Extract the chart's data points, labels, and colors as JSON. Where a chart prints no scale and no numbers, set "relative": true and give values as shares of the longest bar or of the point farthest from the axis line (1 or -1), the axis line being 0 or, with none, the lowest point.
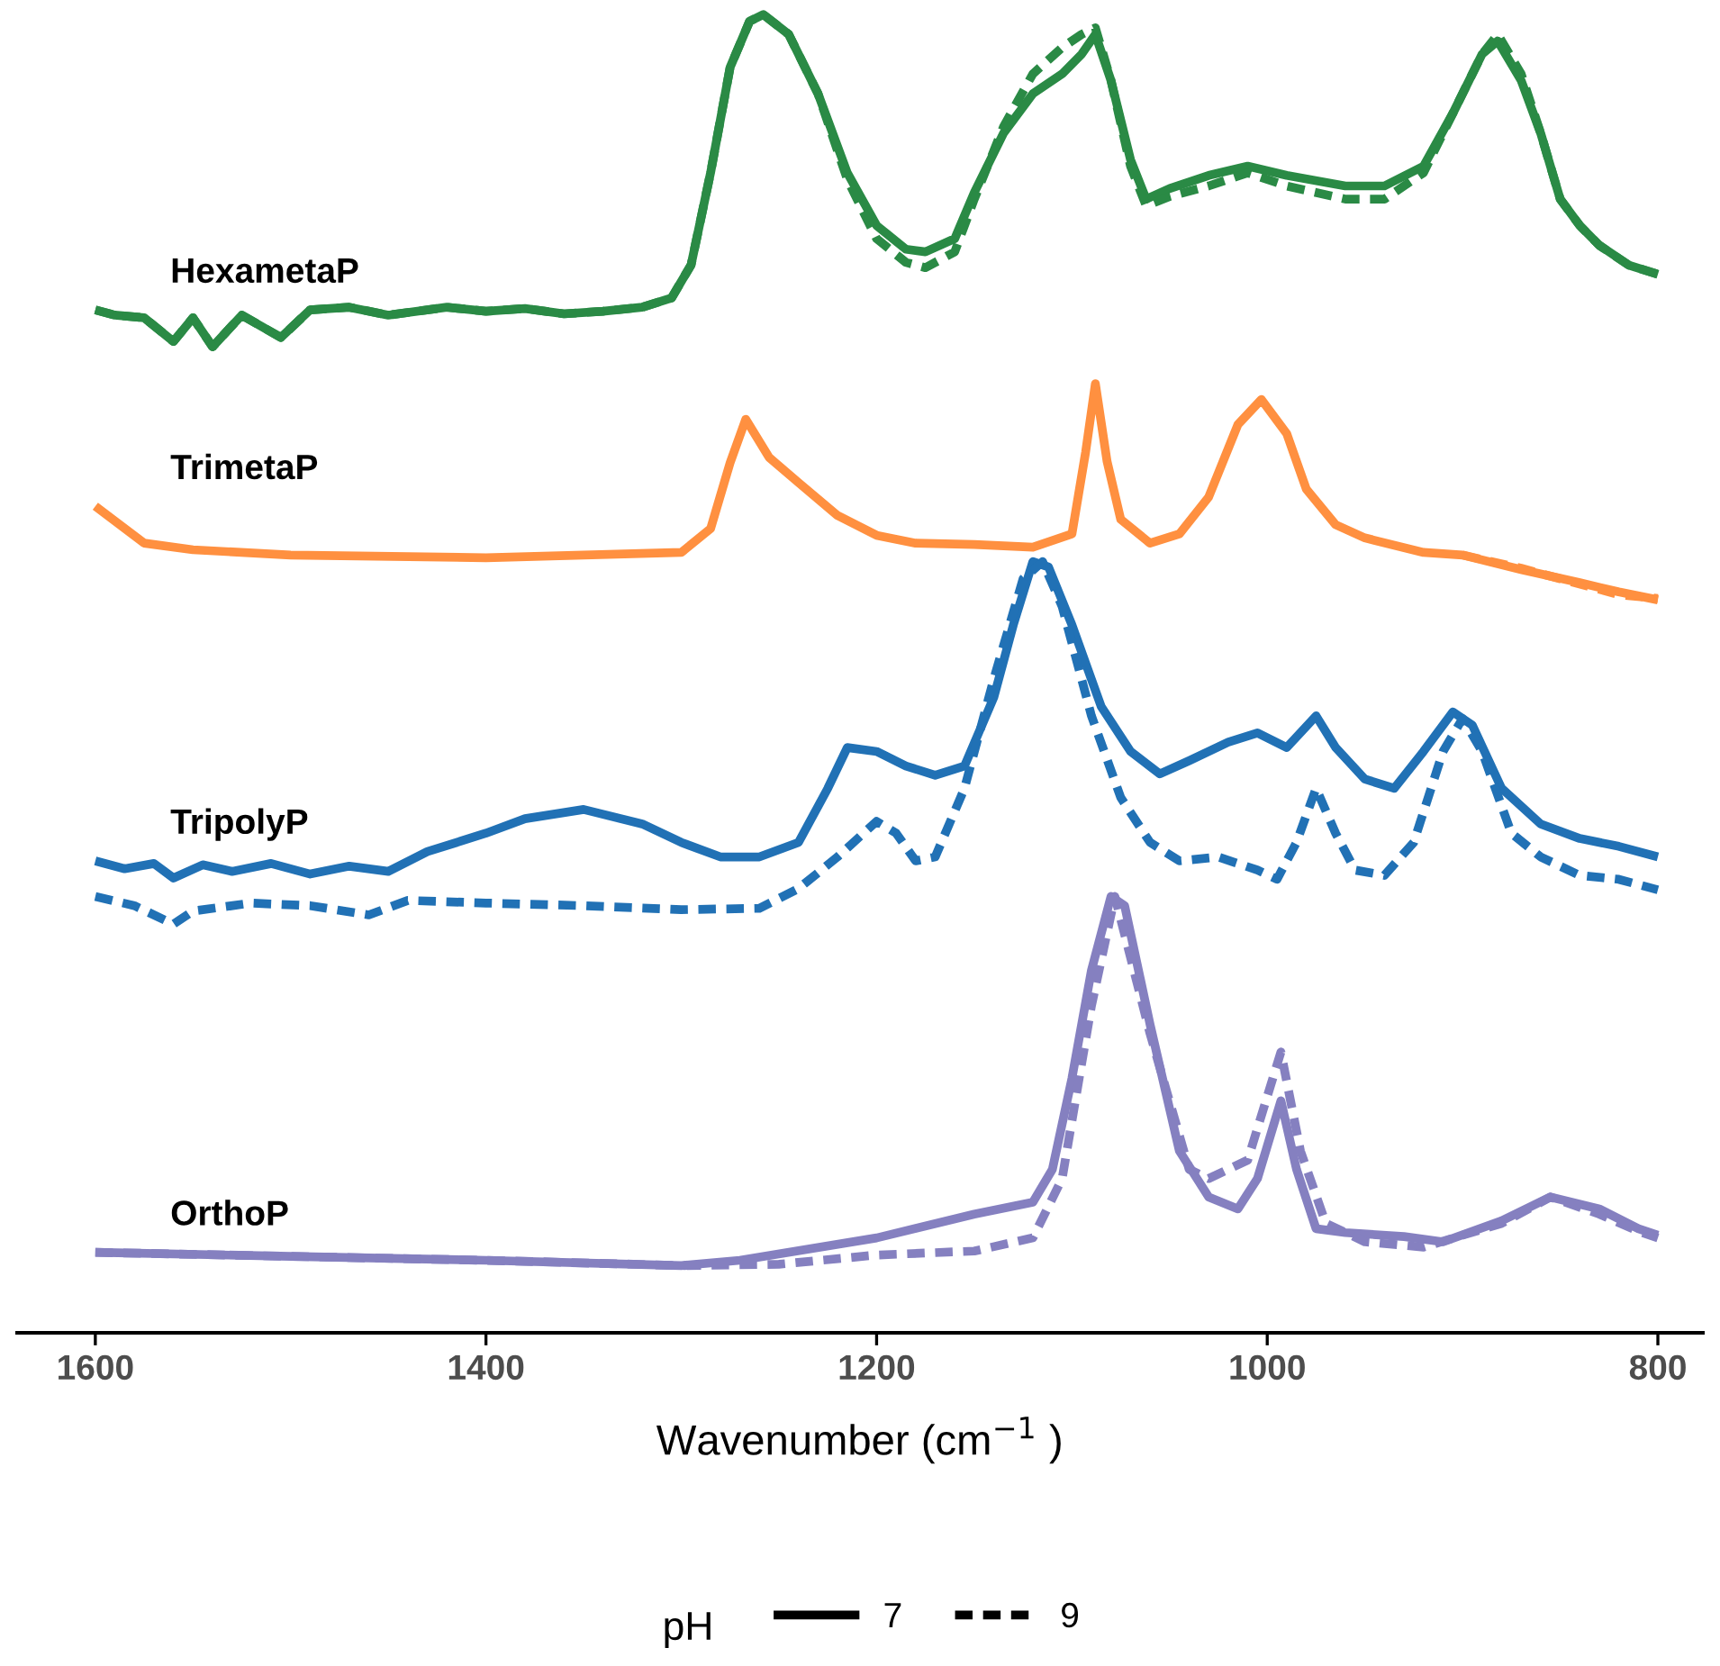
{
  "chart_data": {
    "type": "line",
    "relative": true,
    "xlabel": "Wavenumber (cm$^{−1}$ )",
    "legend_title": "pH",
    "legend": "bottom",
    "grid": false,
    "marker": "none",
    "tick_labels": "x",
    "xlim": [
      1640,
      777
    ],
    "xticks": [
      1600,
      1400,
      1200,
      1000,
      800
    ],
    "annotations": [
      "7",
      "9"
    ],
    "series": [
      {
        "name": "HexametaP",
        "line_style": "solid",
        "color": "#2a8a45",
        "x": [
          1600,
          1590,
          1575,
          1560,
          1550,
          1540,
          1525,
          1505,
          1490,
          1470,
          1450,
          1420,
          1400,
          1380,
          1360,
          1340,
          1320,
          1305,
          1295,
          1285,
          1275,
          1265,
          1258,
          1245,
          1230,
          1215,
          1200,
          1185,
          1175,
          1160,
          1150,
          1135,
          1120,
          1105,
          1095,
          1088,
          1080,
          1070,
          1062,
          1050,
          1030,
          1010,
          990,
          960,
          940,
          920,
          905,
          890,
          882,
          870,
          860,
          850,
          840,
          830,
          815,
          800
        ],
        "values": [
          0.776,
          0.772,
          0.77,
          0.752,
          0.77,
          0.748,
          0.772,
          0.755,
          0.776,
          0.778,
          0.772,
          0.778,
          0.775,
          0.777,
          0.773,
          0.775,
          0.778,
          0.785,
          0.81,
          0.88,
          0.96,
          0.995,
          1.0,
          0.985,
          0.94,
          0.88,
          0.84,
          0.822,
          0.82,
          0.83,
          0.865,
          0.91,
          0.94,
          0.955,
          0.97,
          0.985,
          0.95,
          0.89,
          0.86,
          0.868,
          0.878,
          0.885,
          0.878,
          0.87,
          0.87,
          0.885,
          0.925,
          0.97,
          0.98,
          0.95,
          0.91,
          0.86,
          0.84,
          0.825,
          0.81,
          0.803
        ]
      },
      {
        "line_style": "dashed",
        "color": "#2a8a45",
        "x": [
          1600,
          1590,
          1575,
          1560,
          1550,
          1540,
          1525,
          1505,
          1490,
          1470,
          1450,
          1420,
          1400,
          1380,
          1360,
          1340,
          1320,
          1305,
          1295,
          1285,
          1275,
          1265,
          1258,
          1245,
          1230,
          1215,
          1200,
          1185,
          1175,
          1160,
          1150,
          1135,
          1120,
          1105,
          1095,
          1088,
          1080,
          1070,
          1062,
          1050,
          1030,
          1010,
          990,
          960,
          940,
          920,
          905,
          890,
          882,
          870,
          860,
          850,
          840,
          830,
          815,
          800
        ],
        "values": [
          0.776,
          0.772,
          0.77,
          0.752,
          0.77,
          0.748,
          0.772,
          0.755,
          0.776,
          0.778,
          0.772,
          0.778,
          0.775,
          0.777,
          0.773,
          0.775,
          0.778,
          0.785,
          0.81,
          0.88,
          0.96,
          0.995,
          1.0,
          0.985,
          0.94,
          0.875,
          0.83,
          0.812,
          0.808,
          0.82,
          0.86,
          0.915,
          0.955,
          0.975,
          0.985,
          0.99,
          0.95,
          0.885,
          0.855,
          0.862,
          0.87,
          0.88,
          0.87,
          0.86,
          0.86,
          0.88,
          0.925,
          0.97,
          0.985,
          0.955,
          0.91,
          0.86,
          0.84,
          0.825,
          0.81,
          0.803
        ]
      },
      {
        "name": "TrimetaP",
        "line_style": "solid",
        "color": "#ff9040",
        "x": [
          1600,
          1575,
          1550,
          1500,
          1400,
          1300,
          1285,
          1275,
          1267,
          1255,
          1240,
          1220,
          1200,
          1180,
          1150,
          1120,
          1100,
          1093,
          1088,
          1082,
          1075,
          1060,
          1045,
          1030,
          1015,
          1003,
          990,
          980,
          965,
          950,
          920,
          900,
          870,
          840,
          820,
          800
        ],
        "values": [
          0.627,
          0.599,
          0.594,
          0.59,
          0.588,
          0.592,
          0.61,
          0.66,
          0.693,
          0.664,
          0.645,
          0.62,
          0.605,
          0.599,
          0.598,
          0.596,
          0.606,
          0.668,
          0.72,
          0.661,
          0.617,
          0.599,
          0.606,
          0.634,
          0.689,
          0.708,
          0.682,
          0.64,
          0.613,
          0.603,
          0.592,
          0.59,
          0.579,
          0.569,
          0.562,
          0.556
        ]
      },
      {
        "line_style": "dashed",
        "color": "#ff9040",
        "x": [
          900,
          870,
          840,
          820,
          800
        ],
        "values": [
          0.59,
          0.58,
          0.568,
          0.56,
          0.557
        ]
      },
      {
        "name": "TripolyP",
        "line_style": "solid",
        "color": "#2171b5",
        "x": [
          1600,
          1585,
          1570,
          1560,
          1545,
          1530,
          1510,
          1490,
          1470,
          1450,
          1430,
          1400,
          1380,
          1350,
          1320,
          1300,
          1280,
          1260,
          1240,
          1225,
          1215,
          1200,
          1185,
          1170,
          1155,
          1140,
          1130,
          1120,
          1112,
          1100,
          1085,
          1070,
          1055,
          1040,
          1020,
          1005,
          990,
          975,
          965,
          950,
          935,
          920,
          905,
          895,
          880,
          860,
          840,
          820,
          800
        ],
        "values": [
          0.358,
          0.352,
          0.356,
          0.345,
          0.355,
          0.35,
          0.356,
          0.348,
          0.354,
          0.35,
          0.365,
          0.379,
          0.39,
          0.397,
          0.386,
          0.372,
          0.361,
          0.361,
          0.372,
          0.413,
          0.444,
          0.441,
          0.43,
          0.423,
          0.43,
          0.482,
          0.537,
          0.585,
          0.581,
          0.537,
          0.475,
          0.441,
          0.424,
          0.434,
          0.448,
          0.455,
          0.444,
          0.468,
          0.444,
          0.42,
          0.413,
          0.441,
          0.471,
          0.461,
          0.413,
          0.386,
          0.375,
          0.369,
          0.361
        ]
      },
      {
        "line_style": "dashed",
        "color": "#2171b5",
        "x": [
          1600,
          1580,
          1560,
          1550,
          1520,
          1490,
          1460,
          1440,
          1400,
          1350,
          1300,
          1260,
          1240,
          1220,
          1200,
          1190,
          1180,
          1170,
          1155,
          1140,
          1125,
          1115,
          1105,
          1090,
          1075,
          1060,
          1045,
          1025,
          1005,
          995,
          985,
          975,
          965,
          955,
          940,
          925,
          910,
          900,
          890,
          875,
          860,
          840,
          820,
          800
        ],
        "values": [
          0.331,
          0.324,
          0.31,
          0.32,
          0.326,
          0.324,
          0.317,
          0.328,
          0.326,
          0.324,
          0.321,
          0.322,
          0.337,
          0.361,
          0.388,
          0.379,
          0.358,
          0.361,
          0.413,
          0.496,
          0.572,
          0.585,
          0.551,
          0.468,
          0.406,
          0.372,
          0.358,
          0.361,
          0.351,
          0.344,
          0.372,
          0.413,
          0.379,
          0.351,
          0.347,
          0.372,
          0.441,
          0.466,
          0.441,
          0.379,
          0.361,
          0.347,
          0.344,
          0.336
        ]
      },
      {
        "name": "OrthoP",
        "line_style": "solid",
        "color": "#8580c0",
        "x": [
          1600,
          1500,
          1400,
          1300,
          1270,
          1200,
          1150,
          1120,
          1110,
          1100,
          1090,
          1080,
          1073,
          1060,
          1045,
          1030,
          1015,
          1005,
          993,
          985,
          975,
          960,
          930,
          910,
          880,
          855,
          830,
          810,
          800
        ],
        "values": [
          0.061,
          0.058,
          0.055,
          0.051,
          0.055,
          0.072,
          0.09,
          0.099,
          0.124,
          0.193,
          0.275,
          0.331,
          0.324,
          0.234,
          0.138,
          0.103,
          0.094,
          0.117,
          0.176,
          0.124,
          0.079,
          0.076,
          0.073,
          0.069,
          0.085,
          0.103,
          0.094,
          0.079,
          0.074
        ]
      },
      {
        "line_style": "dashed",
        "color": "#8580c0",
        "x": [
          1600,
          1500,
          1400,
          1300,
          1250,
          1200,
          1150,
          1120,
          1105,
          1090,
          1078,
          1060,
          1040,
          1030,
          1010,
          993,
          983,
          970,
          950,
          920,
          880,
          855,
          830,
          810,
          800
        ],
        "values": [
          0.061,
          0.058,
          0.055,
          0.051,
          0.052,
          0.059,
          0.062,
          0.072,
          0.117,
          0.248,
          0.331,
          0.227,
          0.124,
          0.117,
          0.131,
          0.213,
          0.138,
          0.083,
          0.069,
          0.065,
          0.083,
          0.103,
          0.09,
          0.077,
          0.072
        ]
      }
    ]
  }
}
